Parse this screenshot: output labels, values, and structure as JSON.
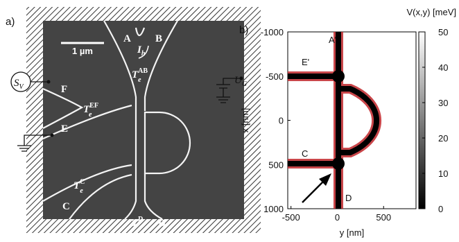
{
  "panel_a": {
    "label": "a)",
    "scale_bar": "1 µm",
    "labels": [
      {
        "base": "A"
      },
      {
        "base": "B"
      },
      {
        "base": "I",
        "sub": "h"
      },
      {
        "base": "T",
        "sub": "e",
        "sup": "AB"
      },
      {
        "base": "S",
        "sub": "V"
      },
      {
        "base": "F"
      },
      {
        "base": "T",
        "sub": "e",
        "sup": "EF"
      },
      {
        "base": "E"
      },
      {
        "base": "T",
        "sub": "e",
        "sup": "C"
      },
      {
        "base": "C"
      },
      {
        "base": "T",
        "sub": "e",
        "sup": "D"
      },
      {
        "base": "D"
      },
      {
        "base": "U",
        "sub": "G"
      }
    ]
  },
  "chart_data": {
    "type": "heatmap",
    "label": "b)",
    "xlabel": "y [nm]",
    "ylabel": "x [nm]",
    "xlim": [
      -535,
      850
    ],
    "xticks": [
      -500,
      0,
      500
    ],
    "ylim": [
      -1000,
      1000
    ],
    "yticks": [
      -1000,
      -500,
      0,
      500,
      1000
    ],
    "colorbar": {
      "label": "V(x,y) [meV]",
      "lim": [
        0,
        50
      ],
      "ticks": [
        0,
        10,
        20,
        30,
        40,
        50
      ]
    },
    "annotations": [
      "A'",
      "E'",
      "C",
      "D"
    ]
  }
}
